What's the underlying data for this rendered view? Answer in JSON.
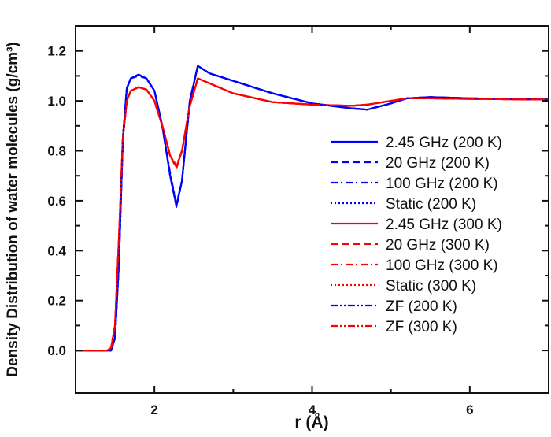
{
  "chart_data": {
    "type": "line",
    "title": "",
    "xlabel": "r (Å)",
    "ylabel": "Density Distribution of water molecules (g/cm³)",
    "xlim": [
      1,
      7
    ],
    "ylim": [
      -0.17,
      1.3
    ],
    "xticks": [
      2,
      4,
      6
    ],
    "xtick_labels": [
      "2",
      "4",
      "6"
    ],
    "yticks": [
      0.0,
      0.2,
      0.4,
      0.6,
      0.8,
      1.0,
      1.2
    ],
    "ytick_labels": [
      "0.0",
      "0.2",
      "0.4",
      "0.6",
      "0.8",
      "1.0",
      "1.2"
    ],
    "grid": false,
    "legend_position": "right",
    "x": [
      1.0,
      1.4,
      1.45,
      1.5,
      1.55,
      1.6,
      1.65,
      1.7,
      1.8,
      1.9,
      2.0,
      2.1,
      2.2,
      2.28,
      2.35,
      2.45,
      2.55,
      2.7,
      3.0,
      3.5,
      4.0,
      4.5,
      4.7,
      5.0,
      5.2,
      5.5,
      6.0,
      7.0
    ],
    "series": [
      {
        "name": "2.45 GHz (200 K)",
        "color": "#0000ff",
        "style": "solid",
        "values": [
          0,
          0,
          0.0,
          0.05,
          0.35,
          0.85,
          1.05,
          1.09,
          1.105,
          1.09,
          1.04,
          0.9,
          0.7,
          0.58,
          0.68,
          1.0,
          1.14,
          1.11,
          1.08,
          1.03,
          0.99,
          0.97,
          0.965,
          0.99,
          1.01,
          1.015,
          1.01,
          1.005
        ]
      },
      {
        "name": "20 GHz (200 K)",
        "color": "#0000ff",
        "style": "dash",
        "values": [
          0,
          0,
          0.0,
          0.05,
          0.35,
          0.85,
          1.05,
          1.09,
          1.1,
          1.09,
          1.04,
          0.9,
          0.7,
          0.575,
          0.68,
          1.0,
          1.14,
          1.11,
          1.08,
          1.03,
          0.99,
          0.97,
          0.965,
          0.99,
          1.01,
          1.015,
          1.01,
          1.005
        ]
      },
      {
        "name": "100 GHz (200 K)",
        "color": "#0000ff",
        "style": "dashdot",
        "values": [
          0,
          0,
          0.0,
          0.05,
          0.35,
          0.85,
          1.05,
          1.09,
          1.105,
          1.09,
          1.04,
          0.9,
          0.71,
          0.585,
          0.68,
          1.0,
          1.14,
          1.11,
          1.08,
          1.03,
          0.99,
          0.97,
          0.965,
          0.99,
          1.01,
          1.015,
          1.01,
          1.005
        ]
      },
      {
        "name": "Static (200 K)",
        "color": "#0000ff",
        "style": "dot",
        "values": [
          0,
          0,
          0.0,
          0.05,
          0.35,
          0.85,
          1.05,
          1.09,
          1.105,
          1.09,
          1.04,
          0.9,
          0.7,
          0.58,
          0.68,
          1.0,
          1.14,
          1.11,
          1.08,
          1.03,
          0.99,
          0.97,
          0.965,
          0.99,
          1.01,
          1.015,
          1.01,
          1.005
        ]
      },
      {
        "name": "2.45 GHz (300 K)",
        "color": "#ff0000",
        "style": "solid",
        "values": [
          0,
          0,
          0.01,
          0.1,
          0.45,
          0.85,
          1.0,
          1.04,
          1.055,
          1.045,
          1.0,
          0.9,
          0.78,
          0.735,
          0.8,
          0.98,
          1.09,
          1.07,
          1.03,
          0.995,
          0.985,
          0.98,
          0.985,
          1.0,
          1.01,
          1.01,
          1.008,
          1.005
        ]
      },
      {
        "name": "20 GHz (300 K)",
        "color": "#ff0000",
        "style": "dash",
        "values": [
          0,
          0,
          0.01,
          0.1,
          0.45,
          0.85,
          1.0,
          1.04,
          1.055,
          1.045,
          1.0,
          0.9,
          0.78,
          0.73,
          0.8,
          0.98,
          1.09,
          1.07,
          1.03,
          0.995,
          0.985,
          0.98,
          0.985,
          1.0,
          1.01,
          1.01,
          1.008,
          1.005
        ]
      },
      {
        "name": "100 GHz (300 K)",
        "color": "#ff0000",
        "style": "dashdot",
        "values": [
          0,
          0,
          0.01,
          0.1,
          0.45,
          0.85,
          1.0,
          1.04,
          1.055,
          1.045,
          1.0,
          0.9,
          0.78,
          0.74,
          0.8,
          0.98,
          1.09,
          1.07,
          1.03,
          0.995,
          0.985,
          0.98,
          0.985,
          1.0,
          1.01,
          1.01,
          1.008,
          1.005
        ]
      },
      {
        "name": "Static (300 K)",
        "color": "#ff0000",
        "style": "dot",
        "values": [
          0,
          0,
          0.01,
          0.1,
          0.45,
          0.85,
          1.0,
          1.04,
          1.055,
          1.045,
          1.0,
          0.9,
          0.78,
          0.735,
          0.8,
          0.98,
          1.09,
          1.07,
          1.03,
          0.995,
          0.985,
          0.98,
          0.985,
          1.0,
          1.01,
          1.01,
          1.008,
          1.005
        ]
      },
      {
        "name": "ZF (200 K)",
        "color": "#0000ff",
        "style": "dashdotdot",
        "values": [
          0,
          0,
          0.0,
          0.05,
          0.35,
          0.85,
          1.05,
          1.09,
          1.105,
          1.09,
          1.04,
          0.9,
          0.7,
          0.58,
          0.68,
          1.0,
          1.14,
          1.11,
          1.08,
          1.03,
          0.99,
          0.97,
          0.965,
          0.99,
          1.01,
          1.015,
          1.01,
          1.005
        ]
      },
      {
        "name": "ZF (300 K)",
        "color": "#ff0000",
        "style": "dashdotdot",
        "values": [
          0,
          0,
          0.01,
          0.1,
          0.45,
          0.85,
          1.0,
          1.04,
          1.055,
          1.045,
          1.0,
          0.9,
          0.78,
          0.735,
          0.8,
          0.98,
          1.09,
          1.07,
          1.03,
          0.995,
          0.985,
          0.98,
          0.985,
          1.0,
          1.01,
          1.01,
          1.008,
          1.005
        ]
      }
    ]
  }
}
